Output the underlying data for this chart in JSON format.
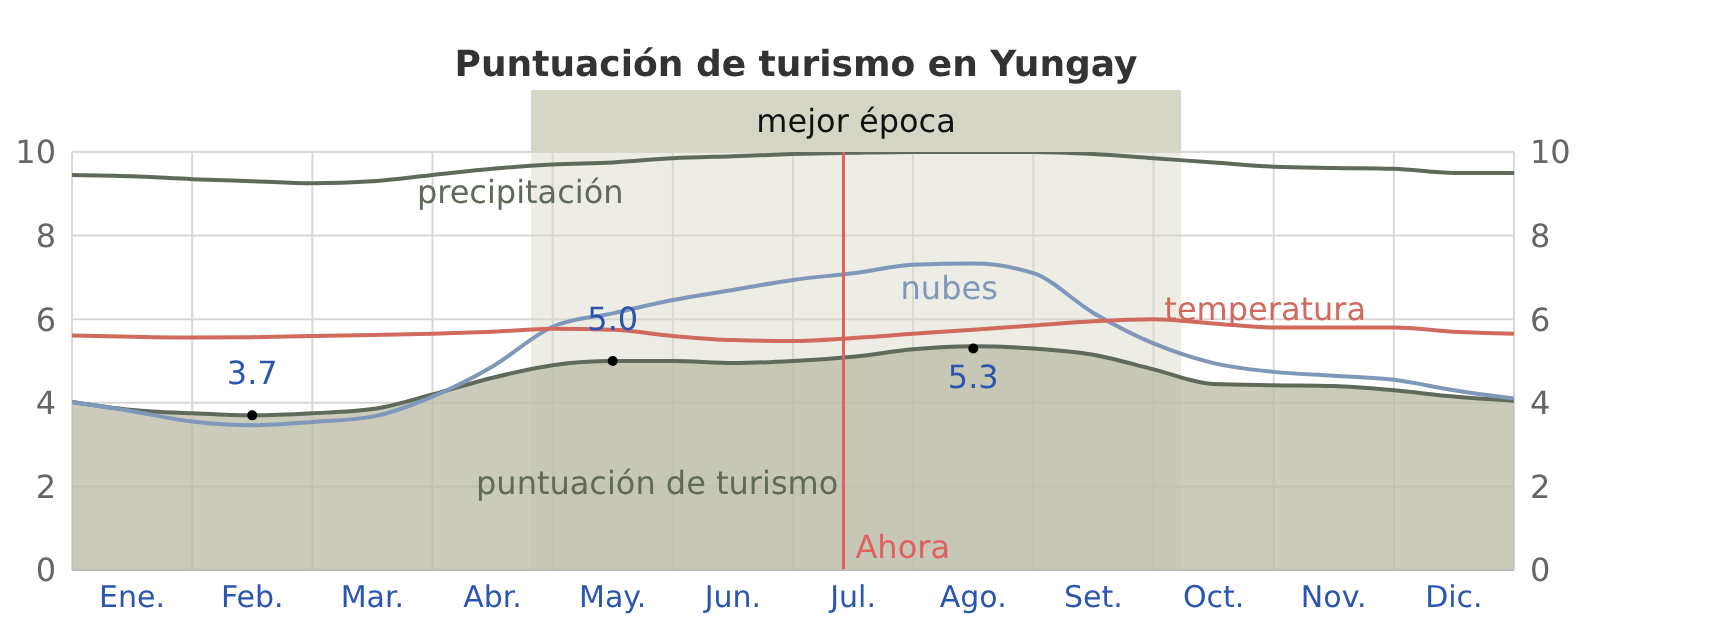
{
  "chart_data": {
    "type": "line",
    "title": "Puntuación de turismo en Yungay",
    "categories": [
      null,
      "Ene.",
      null,
      "Feb.",
      null,
      "Mar.",
      null,
      "Abr.",
      null,
      "May.",
      null,
      "Jun.",
      null,
      "Jul.",
      null,
      "Ago.",
      null,
      "Set.",
      null,
      "Oct.",
      null,
      "Nov.",
      null,
      "Dic.",
      null
    ],
    "series": [
      {
        "name": "puntuación de turismo",
        "type": "area",
        "color": "#5f6a5a",
        "values": [
          4.02,
          3.83,
          3.75,
          3.7,
          3.75,
          3.85,
          4.2,
          4.6,
          4.9,
          5.0,
          5.0,
          4.95,
          5.0,
          5.1,
          5.28,
          5.35,
          5.3,
          5.15,
          4.8,
          4.45,
          4.42,
          4.4,
          4.3,
          4.15,
          4.05
        ]
      },
      {
        "name": "precipitación",
        "color": "#5f6a5a",
        "values": [
          9.45,
          9.42,
          9.35,
          9.3,
          9.25,
          9.3,
          9.45,
          9.6,
          9.7,
          9.75,
          9.85,
          9.9,
          9.95,
          9.98,
          10,
          10,
          10,
          9.95,
          9.85,
          9.75,
          9.65,
          9.62,
          9.6,
          9.5,
          9.5
        ]
      },
      {
        "name": "nubes",
        "color": "#7f97b8",
        "values": [
          4.02,
          3.8,
          3.55,
          3.46,
          3.54,
          3.67,
          4.15,
          4.87,
          5.82,
          6.14,
          6.46,
          6.7,
          6.94,
          7.1,
          7.3,
          7.33,
          7.1,
          6.15,
          5.42,
          4.95,
          4.74,
          4.65,
          4.55,
          4.3,
          4.1
        ]
      },
      {
        "name": "temperatura",
        "color": "#d06a5f",
        "values": [
          5.61,
          5.58,
          5.56,
          5.57,
          5.6,
          5.62,
          5.65,
          5.7,
          5.77,
          5.75,
          5.6,
          5.5,
          5.48,
          5.55,
          5.65,
          5.75,
          5.85,
          5.95,
          6.0,
          5.9,
          5.8,
          5.8,
          5.8,
          5.7,
          5.65
        ]
      }
    ],
    "ylim": [
      0,
      10
    ],
    "yticks": [
      0,
      2,
      4,
      6,
      8,
      10
    ],
    "y2lim": [
      0,
      10
    ],
    "y2ticks": [
      0,
      2,
      4,
      6,
      8,
      10
    ],
    "grid": true,
    "legend": false,
    "marker": "none",
    "line_style": "solid",
    "annotations": [
      "mejor época",
      "Ahora",
      {
        "text": "3.7",
        "x": "Feb.",
        "y": 3.7
      },
      {
        "text": "5.0",
        "x": "May.",
        "y": 5.0
      },
      {
        "text": "5.3",
        "x": "Ago.",
        "y": 5.3
      }
    ]
  }
}
